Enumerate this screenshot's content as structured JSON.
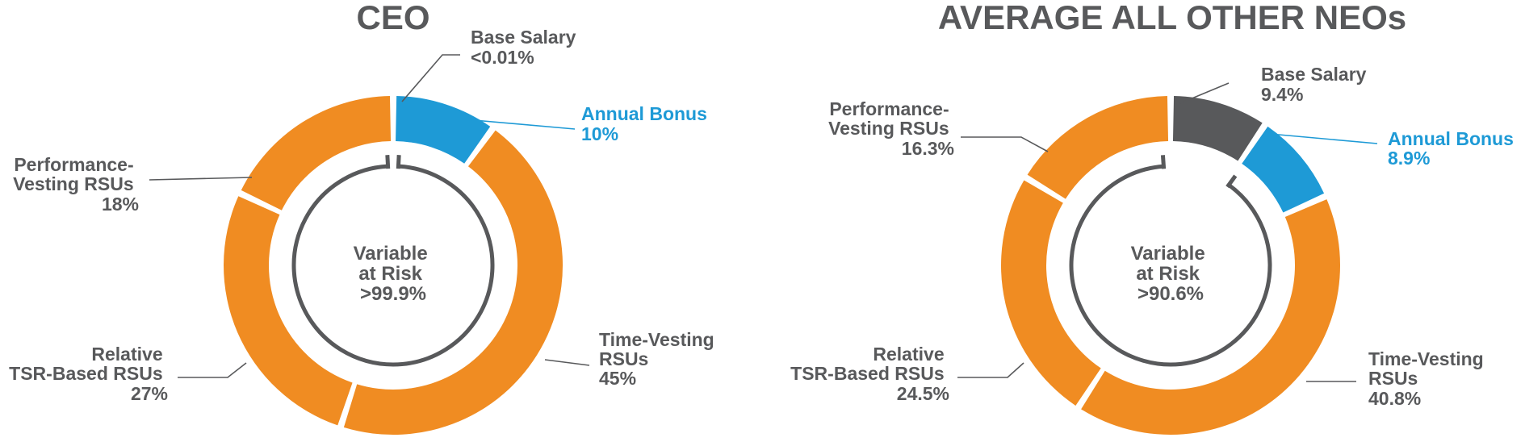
{
  "chart_data": [
    {
      "type": "pie",
      "style": "donut",
      "title": "CEO",
      "center_label": [
        "Variable",
        "at Risk",
        ">99.9%"
      ],
      "slices": [
        {
          "key": "base",
          "name_lines": [
            "Base Salary"
          ],
          "label": "<0.01%",
          "value": 0.01,
          "color": "#58595b"
        },
        {
          "key": "bonus",
          "name_lines": [
            "Annual Bonus"
          ],
          "label": "10%",
          "value": 10,
          "color": "#1e9ad6"
        },
        {
          "key": "time",
          "name_lines": [
            "Time-Vesting",
            "RSUs"
          ],
          "label": "45%",
          "value": 45,
          "color": "#f08c22"
        },
        {
          "key": "tsr",
          "name_lines": [
            "Relative",
            "TSR-Based RSUs"
          ],
          "label": "27%",
          "value": 27,
          "color": "#f08c22"
        },
        {
          "key": "perf",
          "name_lines": [
            "Performance-",
            "Vesting RSUs"
          ],
          "label": "18%",
          "value": 18,
          "color": "#f08c22"
        }
      ]
    },
    {
      "type": "pie",
      "style": "donut",
      "title": "AVERAGE ALL OTHER NEOs",
      "center_label": [
        "Variable",
        "at Risk",
        ">90.6%"
      ],
      "slices": [
        {
          "key": "base",
          "name_lines": [
            "Base Salary"
          ],
          "label": "9.4%",
          "value": 9.4,
          "color": "#58595b"
        },
        {
          "key": "bonus",
          "name_lines": [
            "Annual Bonus"
          ],
          "label": "8.9%",
          "value": 8.9,
          "color": "#1e9ad6"
        },
        {
          "key": "time",
          "name_lines": [
            "Time-Vesting",
            "RSUs"
          ],
          "label": "40.8%",
          "value": 40.8,
          "color": "#f08c22"
        },
        {
          "key": "tsr",
          "name_lines": [
            "Relative",
            "TSR-Based RSUs"
          ],
          "label": "24.5%",
          "value": 24.5,
          "color": "#f08c22"
        },
        {
          "key": "perf",
          "name_lines": [
            "Performance-",
            "Vesting RSUs"
          ],
          "label": "16.3%",
          "value": 16.3,
          "color": "#f08c22"
        }
      ]
    }
  ]
}
